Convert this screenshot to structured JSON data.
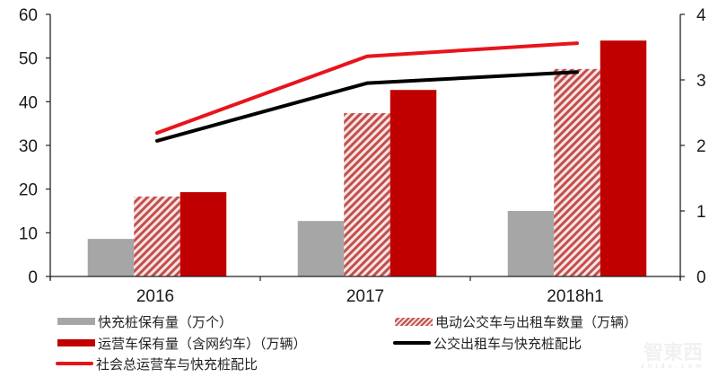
{
  "chart_data": {
    "type": "bar",
    "title": "",
    "categories": [
      "2016",
      "2017",
      "2018h1"
    ],
    "series": [
      {
        "name": "快充桩保有量（万个）",
        "type": "bar",
        "axis": "left",
        "color": "#a6a6a6",
        "values": [
          8.6,
          12.7,
          15.0
        ]
      },
      {
        "name": "电动公交车与出租车数量（万辆）",
        "type": "bar",
        "axis": "left",
        "color": "#c0504d",
        "pattern": "hatch",
        "values": [
          18.3,
          37.4,
          47.5
        ]
      },
      {
        "name": "运营车保有量（含网约车）（万辆）",
        "type": "bar",
        "axis": "left",
        "color": "#c00000",
        "values": [
          19.3,
          42.7,
          54.0
        ]
      },
      {
        "name": "公交出租车与快充桩配比",
        "type": "line",
        "axis": "right",
        "color": "#000000",
        "values": [
          2.07,
          2.95,
          3.12
        ]
      },
      {
        "name": "社会总运营车与快充桩配比",
        "type": "line",
        "axis": "right",
        "color": "#e8141b",
        "values": [
          2.19,
          3.36,
          3.56
        ]
      }
    ],
    "xlabel": "",
    "ylabel": "",
    "ylim": [
      0,
      60
    ],
    "y_ticks": [
      "0",
      "10",
      "20",
      "30",
      "40",
      "50",
      "60"
    ],
    "y2lim": [
      0,
      4
    ],
    "y2_ticks": [
      "0",
      "1",
      "2",
      "3",
      "4"
    ],
    "grid": false,
    "legend_position": "bottom"
  },
  "legend": {
    "items": [
      {
        "label": "快充桩保有量（万个）",
        "swatch": "gray"
      },
      {
        "label": "电动公交车与出租车数量（万辆）",
        "swatch": "hatch"
      },
      {
        "label": "运营车保有量（含网约车）（万辆）",
        "swatch": "darkred"
      },
      {
        "label": "公交出租车与快充桩配比",
        "swatch": "line-black"
      },
      {
        "label": "社会总运营车与快充桩配比",
        "swatch": "line-red"
      }
    ]
  },
  "watermark": {
    "main": "智東西",
    "sub": "zhidx.com"
  }
}
